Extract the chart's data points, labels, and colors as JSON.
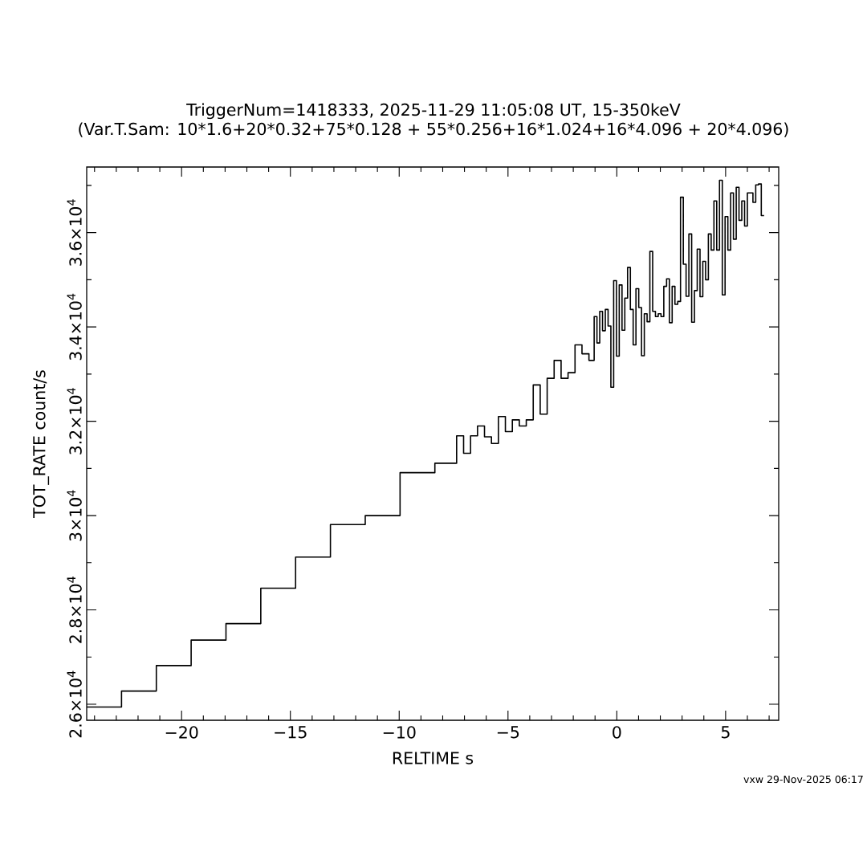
{
  "chart_data": {
    "type": "step",
    "title": "TriggerNum=1418333, 2025-11-29 11:05:08 UT, 15-350keV",
    "subtitle": "(Var.T.Sam: 10*1.6+20*0.32+75*0.128  +  55*0.256+16*1.024+16*4.096  +  20*4.096)",
    "xlabel": "RELTIME  s",
    "ylabel": "TOT_RATE  count/s",
    "annotations": [
      "vxw 29-Nov-2025 06:17"
    ],
    "color": "#000000",
    "x": [
      -24.36,
      -22.76,
      -21.16,
      -19.56,
      -17.96,
      -16.36,
      -14.76,
      -13.16,
      -11.56,
      -9.96,
      -8.36,
      -7.36,
      -7.04,
      -6.72,
      -6.4,
      -6.08,
      -5.76,
      -5.44,
      -5.12,
      -4.8,
      -4.48,
      -4.16,
      -3.84,
      -3.52,
      -3.2,
      -2.88,
      -2.56,
      -2.24,
      -1.92,
      -1.6,
      -1.28,
      -1.04,
      -0.912,
      -0.784,
      -0.656,
      -0.528,
      -0.4,
      -0.272,
      -0.144,
      -0.016,
      0.112,
      0.24,
      0.368,
      0.496,
      0.624,
      0.752,
      0.88,
      1.008,
      1.136,
      1.264,
      1.392,
      1.52,
      1.648,
      1.776,
      1.904,
      2.032,
      2.16,
      2.288,
      2.416,
      2.544,
      2.672,
      2.8,
      2.928,
      3.056,
      3.184,
      3.312,
      3.44,
      3.568,
      3.696,
      3.824,
      3.952,
      4.08,
      4.208,
      4.336,
      4.464,
      4.592,
      4.72,
      4.848,
      4.976,
      5.104,
      5.232,
      5.36,
      5.488,
      5.616,
      5.744,
      5.872,
      6.0,
      6.128,
      6.256,
      6.384,
      6.512,
      6.64,
      6.768
    ],
    "values": [
      25940,
      26280,
      26820,
      27360,
      27710,
      28460,
      29120,
      29810,
      30000,
      30910,
      31110,
      31690,
      31320,
      31690,
      31900,
      31670,
      31530,
      32100,
      31780,
      32030,
      31900,
      32030,
      32770,
      32150,
      32910,
      33290,
      32910,
      33030,
      33620,
      33430,
      33290,
      34220,
      33660,
      34330,
      33920,
      34370,
      34020,
      32720,
      34980,
      33380,
      34890,
      33930,
      34610,
      35260,
      34370,
      33620,
      34810,
      34410,
      33390,
      34280,
      34110,
      35600,
      34330,
      34220,
      34280,
      34220,
      34860,
      35020,
      34090,
      34860,
      34480,
      34540,
      36750,
      35330,
      34650,
      35970,
      34100,
      34770,
      35650,
      34640,
      35390,
      35000,
      35970,
      35630,
      36670,
      35630,
      37110,
      34680,
      36340,
      35630,
      36840,
      35860,
      36960,
      36260,
      36670,
      36140,
      36840,
      36840,
      36640,
      37010,
      37030,
      36360,
      36360
    ],
    "xlim": [
      -24.36,
      7.44
    ],
    "ylim": [
      25660,
      37390
    ],
    "xticks": [
      {
        "value": -24,
        "label": null
      },
      {
        "value": -23,
        "label": null
      },
      {
        "value": -22,
        "label": null
      },
      {
        "value": -21,
        "label": null
      },
      {
        "value": -20,
        "label": "−20"
      },
      {
        "value": -19,
        "label": null
      },
      {
        "value": -18,
        "label": null
      },
      {
        "value": -17,
        "label": null
      },
      {
        "value": -16,
        "label": null
      },
      {
        "value": -15,
        "label": "−15"
      },
      {
        "value": -14,
        "label": null
      },
      {
        "value": -13,
        "label": null
      },
      {
        "value": -12,
        "label": null
      },
      {
        "value": -11,
        "label": null
      },
      {
        "value": -10,
        "label": "−10"
      },
      {
        "value": -9,
        "label": null
      },
      {
        "value": -8,
        "label": null
      },
      {
        "value": -7,
        "label": null
      },
      {
        "value": -6,
        "label": null
      },
      {
        "value": -5,
        "label": "−5"
      },
      {
        "value": -4,
        "label": null
      },
      {
        "value": -3,
        "label": null
      },
      {
        "value": -2,
        "label": null
      },
      {
        "value": -1,
        "label": null
      },
      0,
      {
        "value": 1,
        "label": null
      },
      {
        "value": 2,
        "label": null
      },
      {
        "value": 3,
        "label": null
      },
      {
        "value": 4,
        "label": null
      },
      5,
      {
        "value": 6,
        "label": null
      },
      {
        "value": 7,
        "label": null
      }
    ],
    "yticks": [
      {
        "value": 26000,
        "label": "2.6×10$^{4}$"
      },
      {
        "value": 27000,
        "label": null
      },
      {
        "value": 28000,
        "label": "2.8×10$^{4}$"
      },
      {
        "value": 29000,
        "label": null
      },
      {
        "value": 30000,
        "label": "3×10$^{4}$"
      },
      {
        "value": 31000,
        "label": null
      },
      {
        "value": 32000,
        "label": "3.2×10$^{4}$"
      },
      {
        "value": 33000,
        "label": null
      },
      {
        "value": 34000,
        "label": "3.4×10$^{4}$"
      },
      {
        "value": 35000,
        "label": null
      },
      {
        "value": 36000,
        "label": "3.6×10$^{4}$"
      },
      {
        "value": 37000,
        "label": null
      }
    ]
  }
}
